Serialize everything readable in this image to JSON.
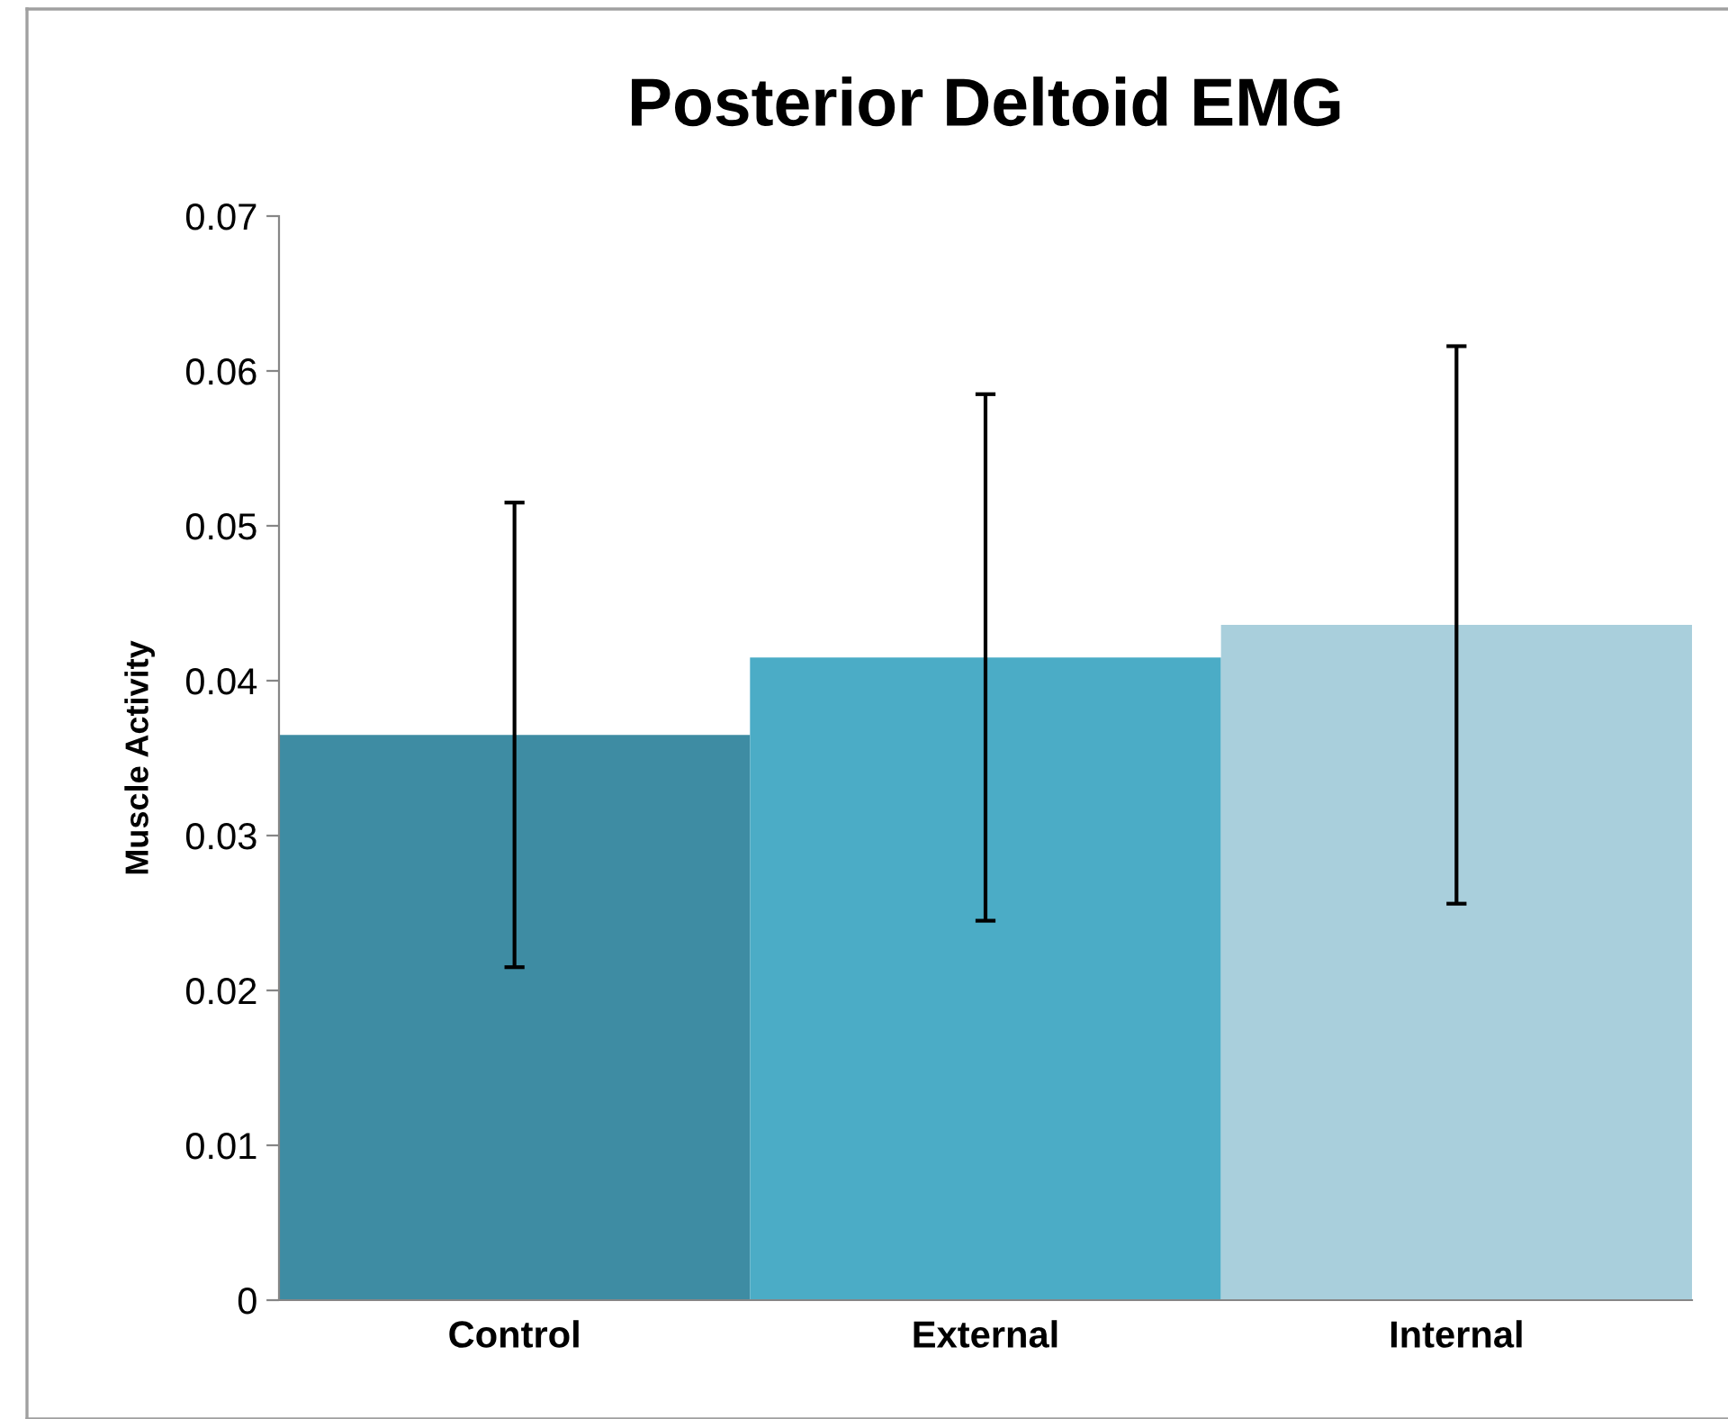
{
  "chart_data": {
    "type": "bar",
    "title": "Posterior Deltoid EMG",
    "ylabel": "Muscle Activity",
    "categories": [
      "Control",
      "External",
      "Internal"
    ],
    "values": [
      0.0365,
      0.0415,
      0.0436
    ],
    "colors": [
      "#3e8ca3",
      "#4bacc6",
      "#a9cfdc"
    ],
    "errors": [
      0.015,
      0.017,
      0.018
    ],
    "ylim": [
      0,
      0.07
    ],
    "yticks": [
      0,
      0.01,
      0.02,
      0.03,
      0.04,
      0.05,
      0.06,
      0.07
    ],
    "grid": false,
    "legend": false
  }
}
